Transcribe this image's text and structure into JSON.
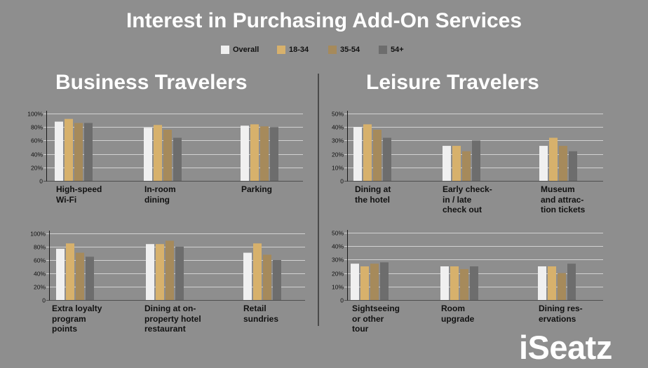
{
  "title": "Interest in Purchasing Add-On Services",
  "sections": [
    {
      "heading": "Business Travelers"
    },
    {
      "heading": "Leisure Travelers"
    }
  ],
  "logo": {
    "text": "iSeatz"
  },
  "chart_data": [
    {
      "type": "bar",
      "legend": "top-center",
      "categories": [
        "High-speed\nWi-Fi",
        "In-room\ndining",
        "Parking"
      ],
      "series": [
        {
          "name": "Overall",
          "color": "#f0f0f0",
          "values": [
            88,
            79,
            82
          ]
        },
        {
          "name": "18-34",
          "color": "#d7b16c",
          "values": [
            92,
            83,
            84
          ]
        },
        {
          "name": "35-54",
          "color": "#a68a5b",
          "values": [
            86,
            76,
            81
          ]
        },
        {
          "name": "54+",
          "color": "#6d6d6d",
          "values": [
            86,
            64,
            80
          ]
        }
      ],
      "ylim": [
        0,
        100
      ],
      "yticks": [
        0,
        20,
        40,
        60,
        80,
        100
      ],
      "ytick_labels": [
        "0",
        "20%",
        "40%",
        "60%",
        "80%",
        "100%"
      ],
      "grid": true
    },
    {
      "type": "bar",
      "categories": [
        "Extra loyalty\nprogram\npoints",
        "Dining at on-\nproperty hotel\nrestaurant",
        "Retail\nsundries"
      ],
      "series": [
        {
          "name": "Overall",
          "color": "#f0f0f0",
          "values": [
            77,
            84,
            71
          ]
        },
        {
          "name": "18-34",
          "color": "#d7b16c",
          "values": [
            85,
            84,
            85
          ]
        },
        {
          "name": "35-54",
          "color": "#a68a5b",
          "values": [
            71,
            89,
            68
          ]
        },
        {
          "name": "54+",
          "color": "#6d6d6d",
          "values": [
            65,
            80,
            60
          ]
        }
      ],
      "ylim": [
        0,
        100
      ],
      "yticks": [
        0,
        20,
        40,
        60,
        80,
        100
      ],
      "ytick_labels": [
        "0",
        "20%",
        "40%",
        "60%",
        "80%",
        "100%"
      ],
      "grid": true
    },
    {
      "type": "bar",
      "categories": [
        "Dining at\nthe hotel",
        "Early check-\nin / late\ncheck out",
        "Museum\nand attrac-\ntion tickets"
      ],
      "series": [
        {
          "name": "Overall",
          "color": "#f0f0f0",
          "values": [
            40,
            26,
            26
          ]
        },
        {
          "name": "18-34",
          "color": "#d7b16c",
          "values": [
            42,
            26,
            32
          ]
        },
        {
          "name": "35-54",
          "color": "#a68a5b",
          "values": [
            38,
            22,
            26
          ]
        },
        {
          "name": "54+",
          "color": "#6d6d6d",
          "values": [
            32,
            30,
            22
          ]
        }
      ],
      "ylim": [
        0,
        50
      ],
      "yticks": [
        0,
        10,
        20,
        30,
        40,
        50
      ],
      "ytick_labels": [
        "0",
        "10%",
        "20%",
        "30%",
        "40%",
        "50%"
      ],
      "grid": true
    },
    {
      "type": "bar",
      "categories": [
        "Sightseeing\nor other\ntour",
        "Room\nupgrade",
        "Dining res-\nervations"
      ],
      "series": [
        {
          "name": "Overall",
          "color": "#f0f0f0",
          "values": [
            27,
            25,
            25
          ]
        },
        {
          "name": "18-34",
          "color": "#d7b16c",
          "values": [
            25,
            25,
            25
          ]
        },
        {
          "name": "35-54",
          "color": "#a68a5b",
          "values": [
            27,
            23,
            20
          ]
        },
        {
          "name": "54+",
          "color": "#6d6d6d",
          "values": [
            28,
            25,
            27
          ]
        }
      ],
      "ylim": [
        0,
        50
      ],
      "yticks": [
        0,
        10,
        20,
        30,
        40,
        50
      ],
      "ytick_labels": [
        "0",
        "10%",
        "20%",
        "30%",
        "40%",
        "50%"
      ],
      "grid": true
    }
  ]
}
